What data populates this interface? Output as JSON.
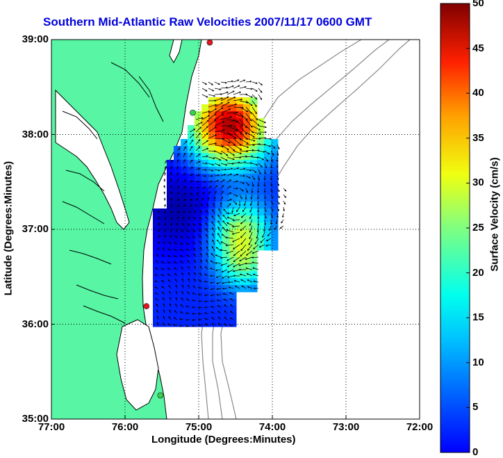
{
  "title": {
    "text": "Southern Mid-Atlantic Raw Velocities 2007/11/17 0600 GMT",
    "color": "#0000dd"
  },
  "colors": {
    "land": "#57f5a4",
    "coast": "#000000",
    "bathymetry": "#888888",
    "grid": "#000000",
    "arrow": "#000000",
    "station_red": "#e8141e",
    "station_green": "#2fd84a"
  },
  "chart_data": {
    "type": "map",
    "xlabel": "Longitude (Degrees:Minutes)",
    "ylabel": "Latitude (Degrees:Minutes)",
    "x_ticks": [
      "77:00",
      "76:00",
      "75:00",
      "74:00",
      "73:00",
      "72:00"
    ],
    "y_ticks": [
      "39:00",
      "38:00",
      "37:00",
      "36:00",
      "35:00"
    ],
    "xlim_west_deg": [
      77,
      72
    ],
    "ylim_deg": [
      35,
      39
    ],
    "grid": "dotted",
    "colorbar": {
      "label": "Surface Velocity (cm/s)",
      "ticks": [
        "0",
        "5",
        "10",
        "15",
        "20",
        "25",
        "30",
        "35",
        "40",
        "45",
        "50"
      ],
      "range": [
        0,
        50
      ],
      "colormap": "jet"
    },
    "stations": [
      {
        "lon_w": 74.85,
        "lat": 38.97,
        "color": "red"
      },
      {
        "lon_w": 75.08,
        "lat": 38.23,
        "color": "green"
      },
      {
        "lon_w": 75.71,
        "lat": 36.19,
        "color": "red"
      },
      {
        "lon_w": 75.52,
        "lat": 35.25,
        "color": "green"
      }
    ]
  }
}
